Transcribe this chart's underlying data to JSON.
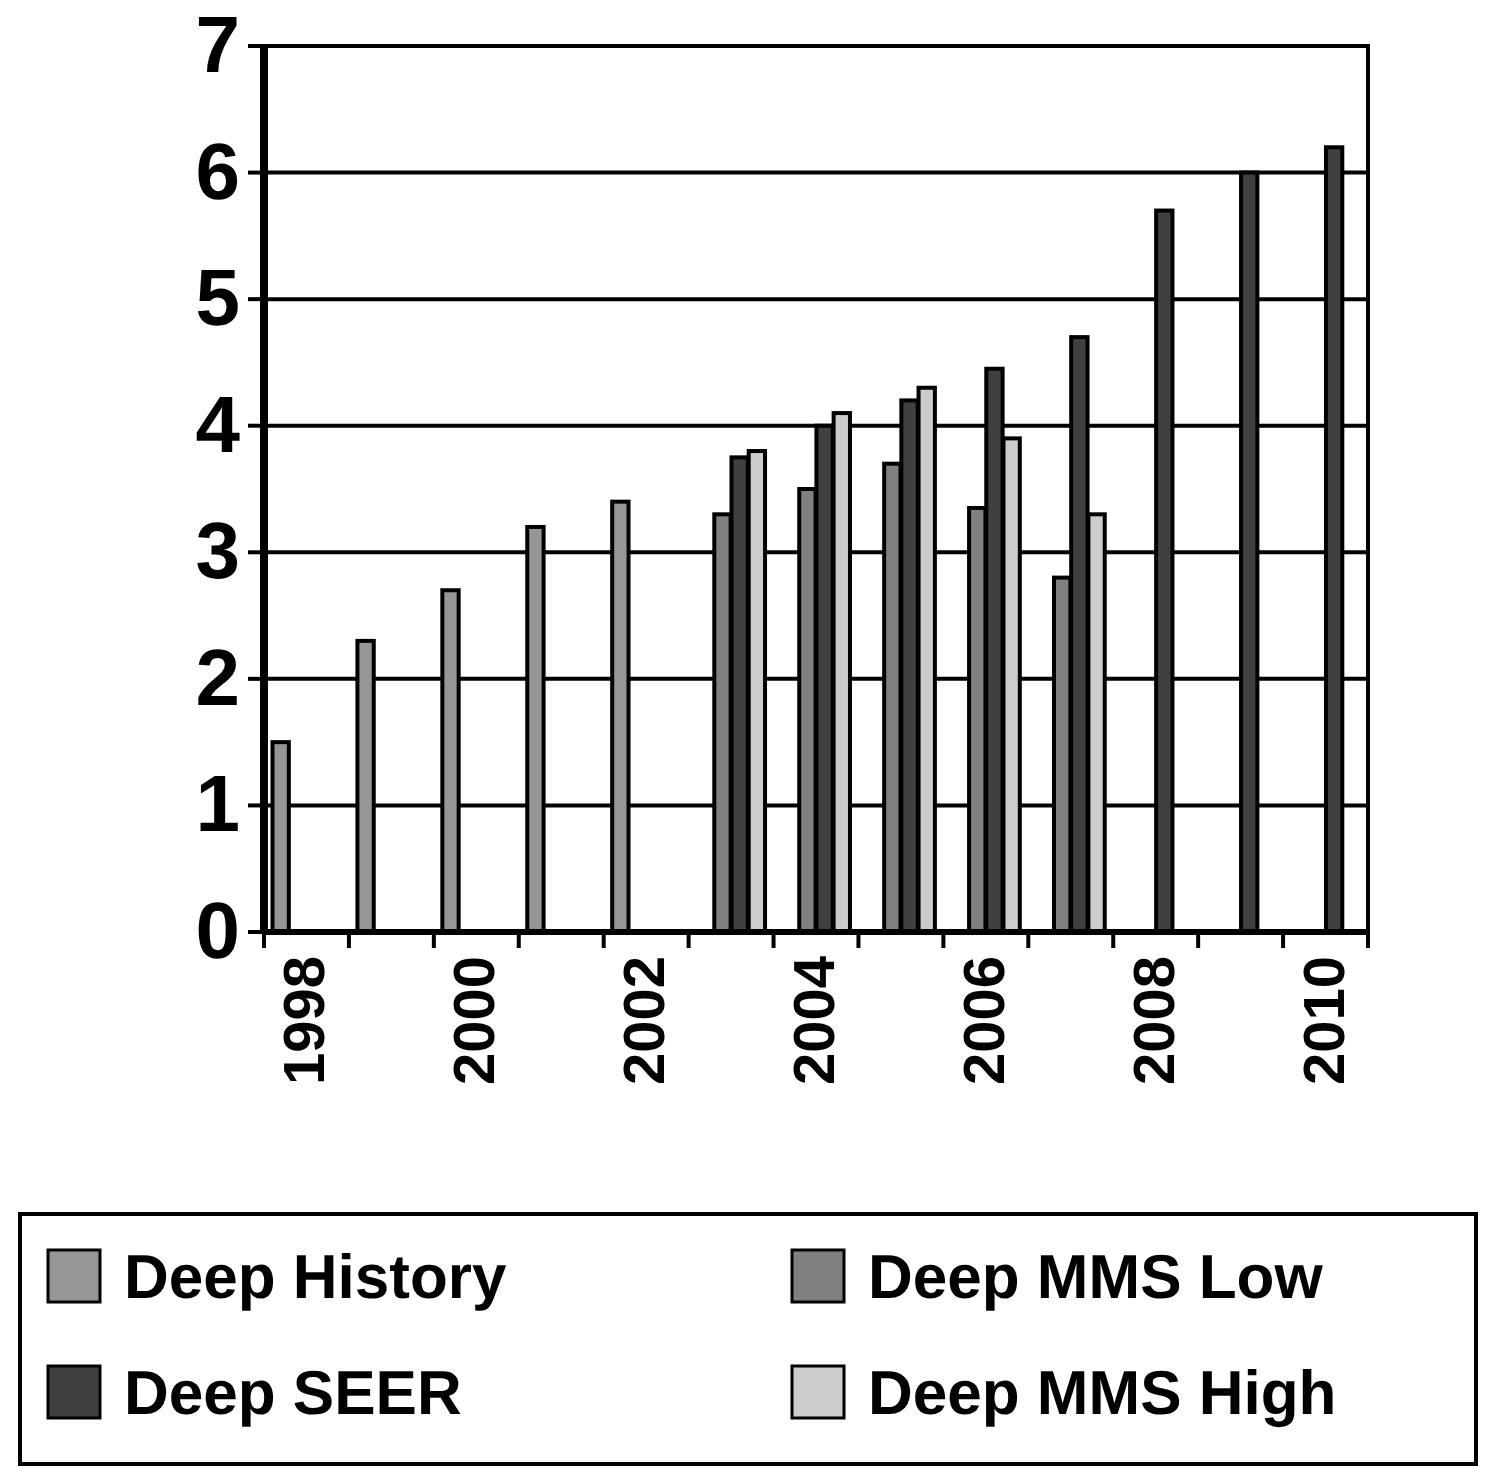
{
  "chart_data": {
    "type": "bar",
    "categories": [
      "1998",
      null,
      "2000",
      null,
      "2002",
      null,
      "2004",
      null,
      "2006",
      null,
      "2008",
      null,
      "2010"
    ],
    "series": [
      {
        "name": "Deep History",
        "color": "#969696",
        "values": [
          1.5,
          2.3,
          2.7,
          3.2,
          3.4,
          null,
          null,
          null,
          null,
          null,
          null,
          null,
          null
        ]
      },
      {
        "name": "Deep MMS Low",
        "color": "#808080",
        "values": [
          null,
          null,
          null,
          null,
          null,
          3.3,
          3.5,
          3.7,
          3.35,
          2.8,
          null,
          null,
          null
        ]
      },
      {
        "name": "Deep SEER",
        "color": "#404040",
        "values": [
          null,
          null,
          null,
          null,
          null,
          3.75,
          4.0,
          4.2,
          4.45,
          4.7,
          5.7,
          6.0,
          6.2
        ]
      },
      {
        "name": "Deep MMS High",
        "color": "#cccccc",
        "values": [
          null,
          null,
          null,
          null,
          null,
          3.8,
          4.1,
          4.3,
          3.9,
          3.3,
          null,
          null,
          null
        ]
      }
    ],
    "ylim": [
      0,
      7
    ],
    "yticks": [
      0,
      1,
      2,
      3,
      4,
      5,
      6,
      7
    ],
    "grid": "y",
    "legend": "bottom"
  }
}
